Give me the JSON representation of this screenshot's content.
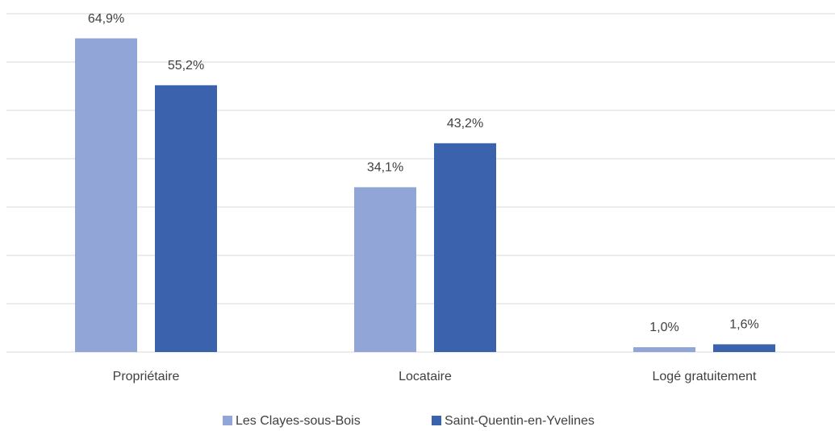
{
  "chart_data": {
    "type": "bar",
    "categories": [
      "Propriétaire",
      "Locataire",
      "Logé gratuitement"
    ],
    "series": [
      {
        "name": "Les Clayes-sous-Bois",
        "color": "#91a5d6",
        "values": [
          64.9,
          34.1,
          1.0
        ],
        "value_labels": [
          "64,9%",
          "34,1%",
          "1,0%"
        ]
      },
      {
        "name": "Saint-Quentin-en-Yvelines",
        "color": "#3a62ad",
        "values": [
          55.2,
          43.2,
          1.6
        ],
        "value_labels": [
          "55,2%",
          "43,2%",
          "1,6%"
        ]
      }
    ],
    "ylim": [
      0,
      70
    ],
    "yticks": [
      0,
      10,
      20,
      30,
      40,
      50,
      60,
      70
    ],
    "grid": true,
    "legend": "bottom"
  }
}
